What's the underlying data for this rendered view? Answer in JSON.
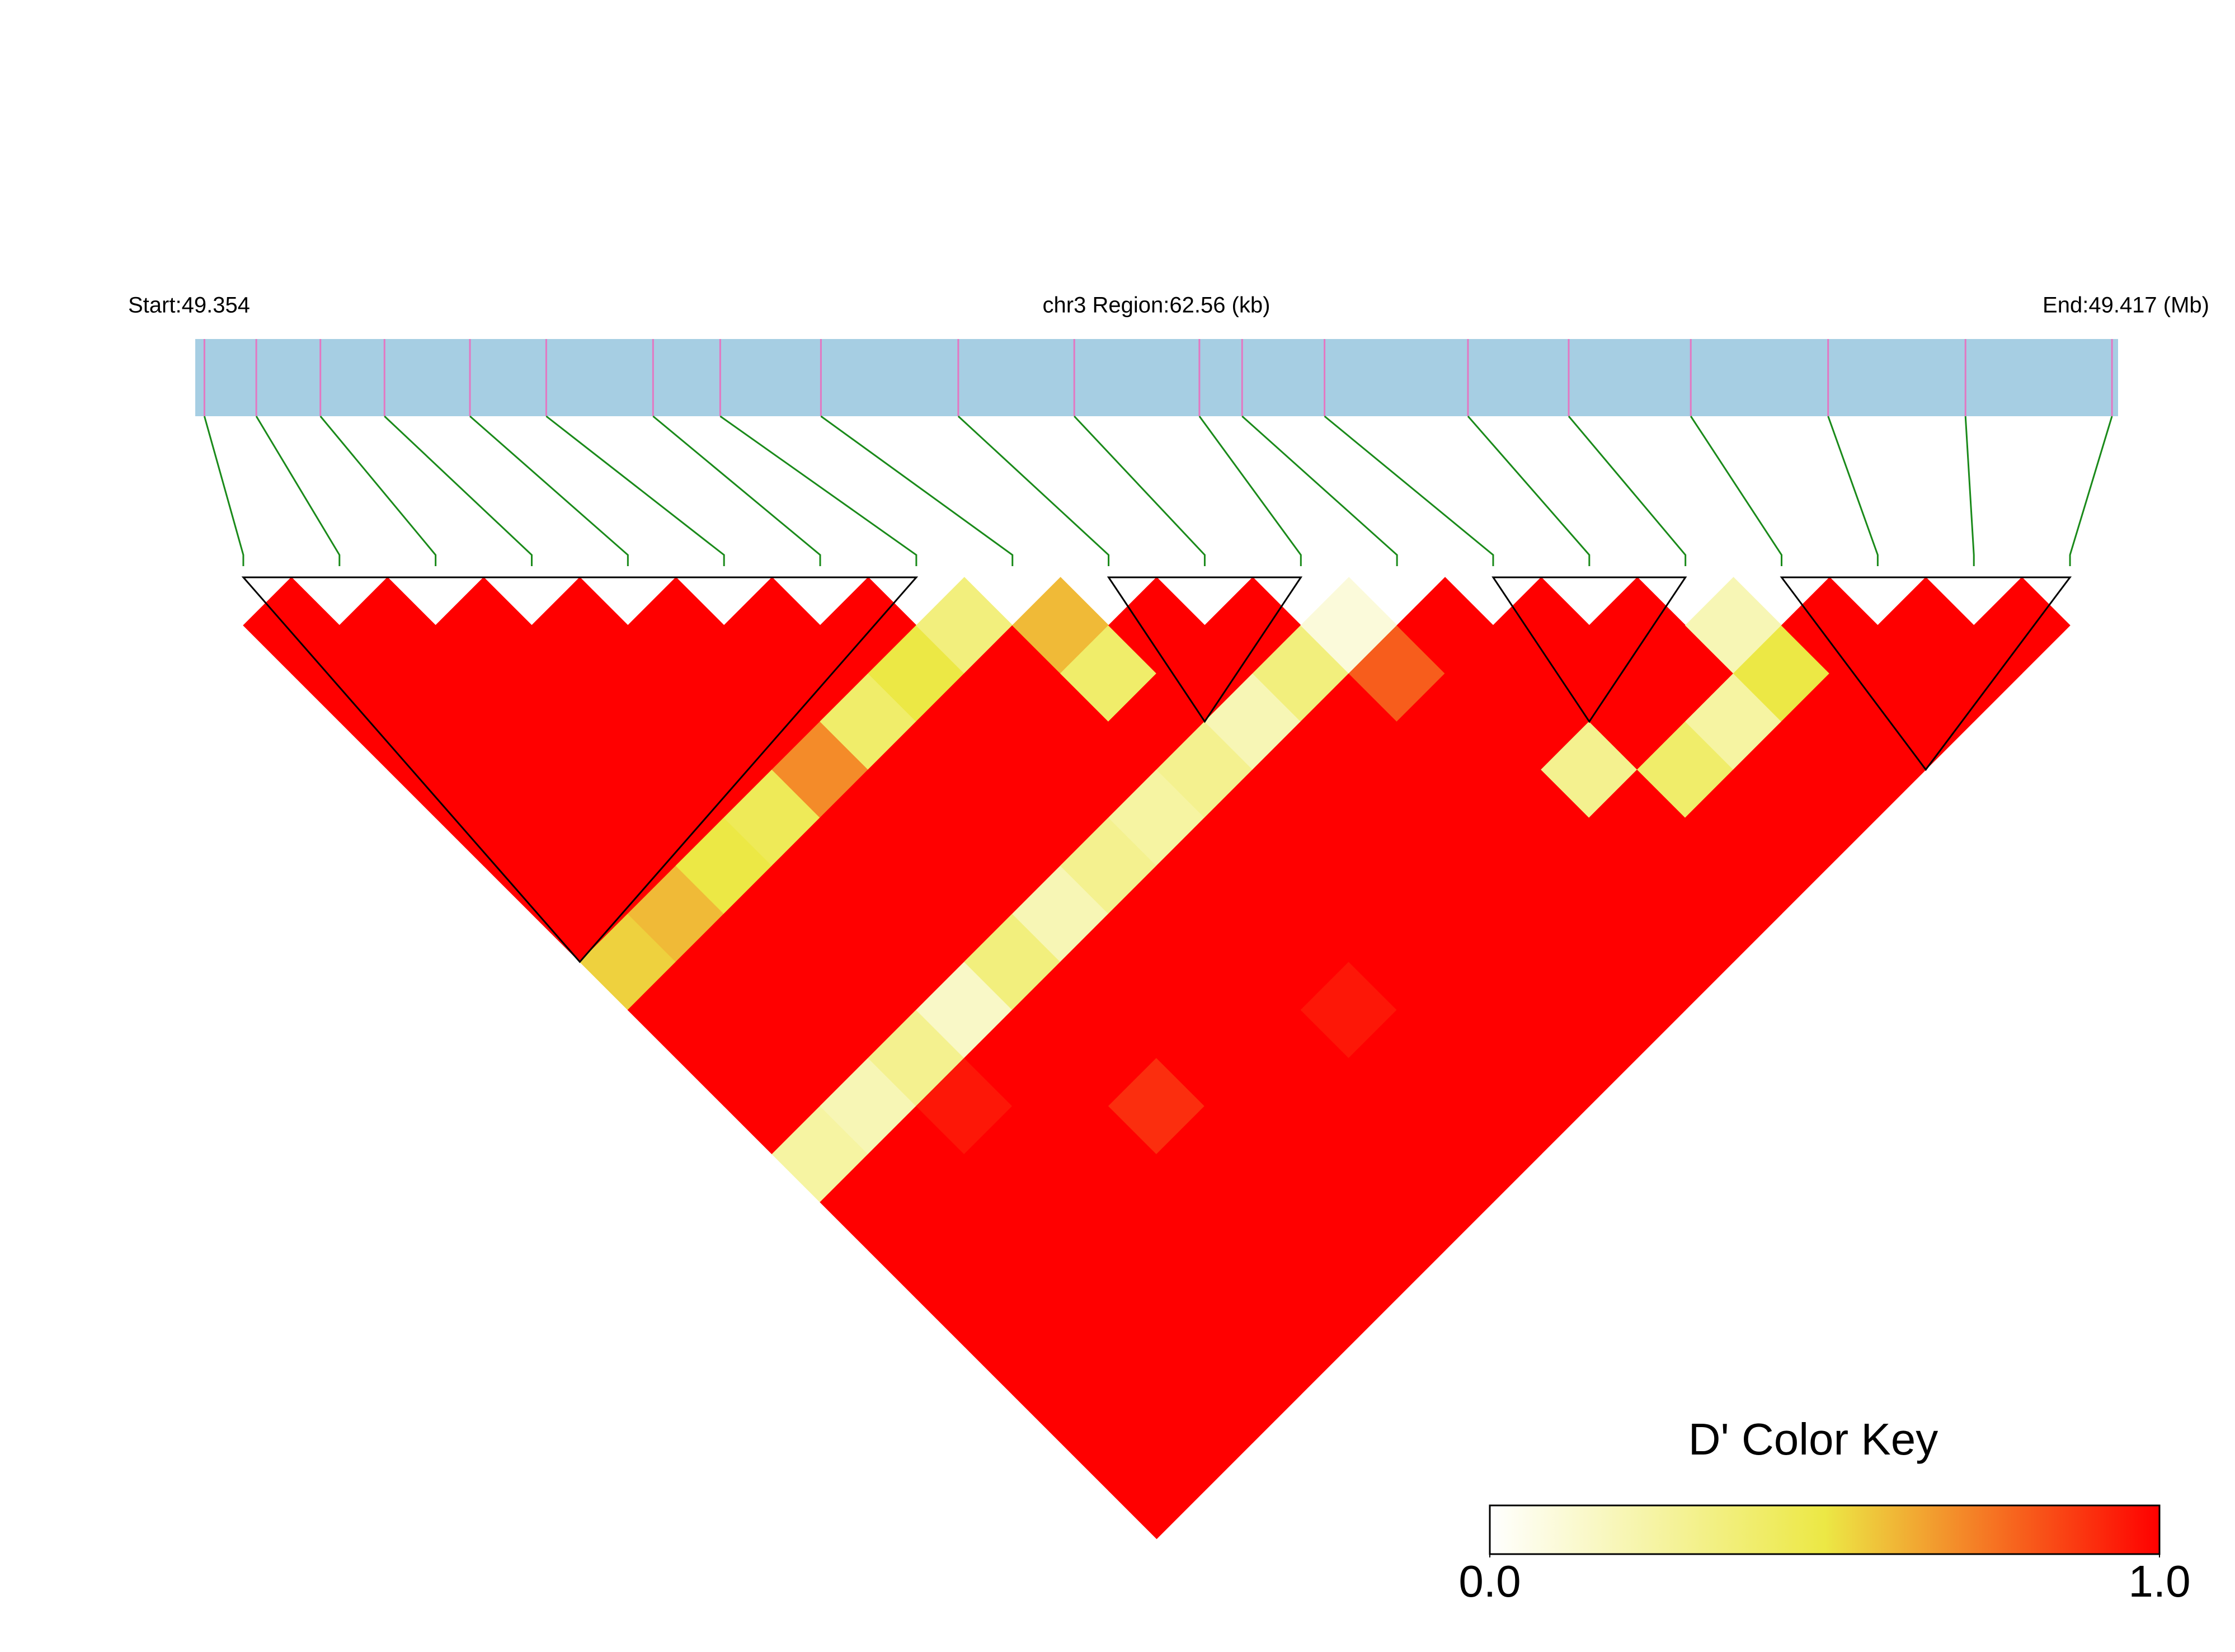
{
  "chart_data": {
    "type": "ld_heatmap",
    "start_label": "Start:49.354",
    "title": "chr3 Region:62.56 (kb)",
    "end_label": "End:49.417 (Mb)",
    "xlim": [
      49.354,
      49.417
    ],
    "positions": [
      49.3543,
      49.356,
      49.3581,
      49.3602,
      49.363,
      49.3655,
      49.369,
      49.3712,
      49.3745,
      49.379,
      49.3828,
      49.3869,
      49.3883,
      49.391,
      49.3957,
      49.399,
      49.403,
      49.4075,
      49.412,
      49.4168
    ],
    "ld_matrix": [
      [
        1,
        1,
        1,
        1,
        1,
        1,
        1,
        0.55,
        1,
        1,
        1,
        0.25,
        1,
        1,
        1,
        1,
        1,
        1,
        1
      ],
      [
        1,
        1,
        1,
        1,
        1,
        1,
        0.6,
        1,
        1,
        1,
        0.2,
        1,
        1,
        1,
        1,
        1,
        1,
        1
      ],
      [
        1,
        1,
        1,
        1,
        1,
        0.5,
        1,
        1,
        1,
        0.3,
        0.95,
        1,
        1,
        1,
        1,
        1,
        1
      ],
      [
        1,
        1,
        1,
        1,
        0.45,
        1,
        1,
        1,
        0.15,
        1,
        1,
        1,
        1,
        1,
        1,
        1
      ],
      [
        1,
        1,
        1,
        0.7,
        1,
        1,
        1,
        0.35,
        1,
        1,
        0.9,
        1,
        1,
        1,
        1
      ],
      [
        1,
        1,
        0.4,
        1,
        1,
        1,
        0.2,
        1,
        1,
        1,
        1,
        1,
        1,
        1
      ],
      [
        1,
        0.5,
        1,
        1,
        1,
        0.3,
        1,
        1,
        1,
        1,
        1,
        1,
        1
      ],
      [
        0.35,
        1,
        1,
        1,
        0.25,
        1,
        1,
        1,
        0.95,
        1,
        1,
        1
      ],
      [
        0.6,
        0.4,
        1,
        0.3,
        1,
        1,
        1,
        1,
        1,
        1,
        1
      ],
      [
        1,
        1,
        0.2,
        1,
        1,
        1,
        1,
        1,
        1,
        1
      ],
      [
        1,
        0.35,
        1,
        1,
        1,
        1,
        1,
        1,
        1
      ],
      [
        0.1,
        0.8,
        1,
        1,
        1,
        1,
        1,
        1
      ],
      [
        1,
        1,
        1,
        0.3,
        1,
        1,
        1
      ],
      [
        1,
        1,
        1,
        0.4,
        1,
        1
      ],
      [
        1,
        1,
        0.25,
        1,
        1
      ],
      [
        0.2,
        0.5,
        1,
        1
      ],
      [
        1,
        1,
        1
      ],
      [
        1,
        1
      ],
      [
        1
      ]
    ],
    "blocks": [
      [
        0,
        7
      ],
      [
        9,
        11
      ],
      [
        13,
        15
      ],
      [
        16,
        19
      ]
    ],
    "region_color": "#a6cee3",
    "snp_color": "#e377c2",
    "link_color": "#1a8a1a",
    "colorbar_title": "D' Color Key",
    "colorscale": [
      "#ffffff",
      "#ece845",
      "#ff0000"
    ],
    "colorbar_lim": [
      0,
      1
    ],
    "colorbar_ticks": [
      {
        "value": 0,
        "label": "0.0"
      },
      {
        "value": 1,
        "label": "1.0"
      }
    ]
  }
}
